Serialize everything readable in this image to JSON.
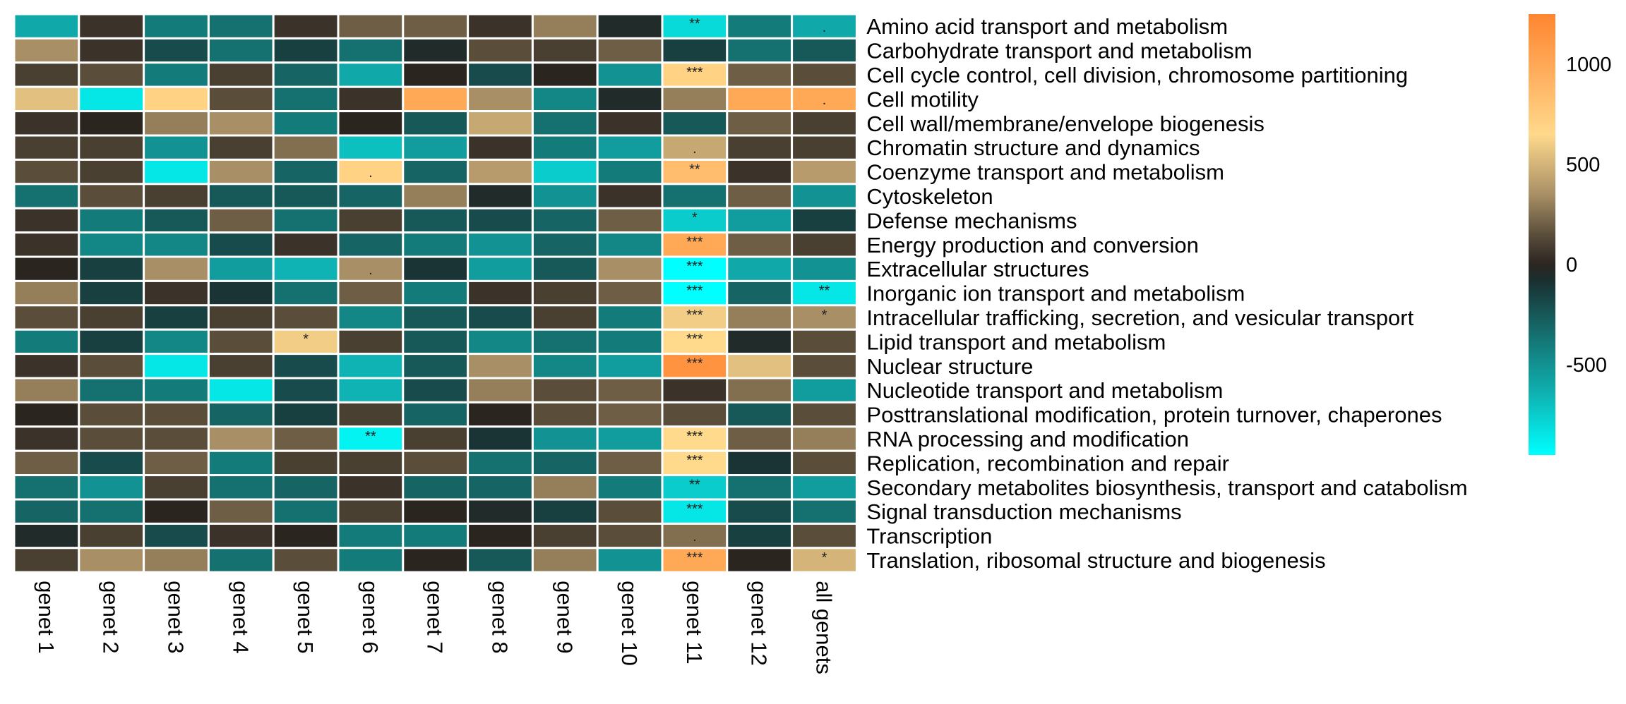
{
  "chart_data": {
    "type": "heatmap",
    "columns": [
      "genet 1",
      "genet 2",
      "genet 3",
      "genet 4",
      "genet 5",
      "genet 6",
      "genet 7",
      "genet 8",
      "genet 9",
      "genet 10",
      "genet 11",
      "genet 12",
      "all genets"
    ],
    "rows": [
      "Amino acid transport and metabolism",
      "Carbohydrate transport and metabolism",
      "Cell cycle control, cell division, chromosome partitioning",
      "Cell motility",
      "Cell wall/membrane/envelope biogenesis",
      "Chromatin structure and dynamics",
      "Coenzyme transport and metabolism",
      "Cytoskeleton",
      "Defense mechanisms",
      "Energy production and conversion",
      "Extracellular structures",
      "Inorganic ion transport and metabolism",
      "Intracellular trafficking, secretion, and vesicular transport",
      "Lipid transport and metabolism",
      "Nuclear structure",
      "Nucleotide transport and metabolism",
      "Posttranslational modification, protein turnover, chaperones",
      "RNA processing and modification",
      "Replication, recombination and repair",
      "Secondary metabolites biosynthesis, transport and catabolism",
      "Signal transduction mechanisms",
      "Transcription",
      "Translation, ribosomal structure and biogenesis"
    ],
    "values": [
      [
        -600,
        50,
        -400,
        -350,
        50,
        200,
        200,
        50,
        300,
        -50,
        -800,
        -400,
        -600
      ],
      [
        350,
        50,
        -200,
        -350,
        -150,
        -350,
        -50,
        150,
        100,
        200,
        -150,
        -350,
        -250
      ],
      [
        100,
        150,
        -400,
        100,
        -300,
        -600,
        0,
        -200,
        0,
        -500,
        700,
        200,
        150
      ],
      [
        550,
        -850,
        700,
        150,
        -350,
        50,
        1000,
        350,
        -450,
        -50,
        300,
        1000,
        1000
      ],
      [
        50,
        0,
        300,
        350,
        -400,
        0,
        -250,
        450,
        -350,
        50,
        -250,
        200,
        100
      ],
      [
        100,
        100,
        -500,
        100,
        250,
        -700,
        -550,
        50,
        -400,
        -550,
        450,
        100,
        100
      ],
      [
        150,
        100,
        -850,
        350,
        -300,
        700,
        -300,
        400,
        -750,
        -400,
        850,
        50,
        400
      ],
      [
        -350,
        150,
        100,
        -250,
        -250,
        -300,
        300,
        -50,
        -500,
        50,
        -350,
        200,
        -500
      ],
      [
        50,
        -400,
        -250,
        200,
        -350,
        100,
        -250,
        -200,
        -300,
        200,
        -750,
        -550,
        -150
      ],
      [
        50,
        -450,
        -450,
        -200,
        50,
        -300,
        -400,
        -500,
        -300,
        -450,
        1000,
        200,
        100
      ],
      [
        0,
        -150,
        350,
        -550,
        -650,
        350,
        -100,
        -550,
        -250,
        350,
        -950,
        -600,
        -500
      ],
      [
        300,
        -150,
        50,
        -100,
        -350,
        200,
        -400,
        50,
        100,
        200,
        -950,
        -300,
        -850
      ],
      [
        150,
        100,
        -150,
        100,
        150,
        -450,
        -250,
        -200,
        100,
        -400,
        600,
        300,
        350
      ],
      [
        -400,
        -150,
        -450,
        150,
        600,
        100,
        -250,
        -450,
        -350,
        -400,
        650,
        -50,
        150
      ],
      [
        50,
        150,
        -850,
        100,
        -200,
        -650,
        -250,
        350,
        -450,
        -550,
        1150,
        550,
        150
      ],
      [
        300,
        -350,
        -400,
        -850,
        -200,
        -650,
        -200,
        300,
        150,
        200,
        50,
        250,
        -550
      ],
      [
        0,
        150,
        150,
        -300,
        -150,
        100,
        -300,
        0,
        150,
        200,
        150,
        -250,
        150
      ],
      [
        50,
        150,
        150,
        350,
        200,
        -900,
        100,
        -100,
        -500,
        -550,
        650,
        200,
        300
      ],
      [
        200,
        -200,
        200,
        -400,
        100,
        100,
        150,
        -350,
        -300,
        200,
        650,
        -100,
        150
      ],
      [
        -350,
        -500,
        100,
        -350,
        -300,
        50,
        -300,
        -300,
        300,
        -400,
        -750,
        -350,
        -550
      ],
      [
        -300,
        -350,
        0,
        200,
        -350,
        100,
        0,
        -50,
        -150,
        150,
        -850,
        -200,
        -350
      ],
      [
        -50,
        100,
        -200,
        50,
        0,
        -400,
        -400,
        0,
        100,
        150,
        250,
        -150,
        150
      ],
      [
        100,
        350,
        300,
        -350,
        150,
        -400,
        0,
        -250,
        300,
        -500,
        1000,
        0,
        500
      ]
    ],
    "significance": [
      [
        "",
        "",
        "",
        "",
        "",
        "",
        "",
        "",
        "",
        "",
        "**",
        "",
        "."
      ],
      [
        "",
        "",
        "",
        "",
        "",
        "",
        "",
        "",
        "",
        "",
        "",
        "",
        ""
      ],
      [
        "",
        "",
        "",
        "",
        "",
        "",
        "",
        "",
        "",
        "",
        "***",
        "",
        ""
      ],
      [
        "",
        "",
        "",
        "",
        "",
        "",
        "",
        "",
        "",
        "",
        "",
        "",
        "."
      ],
      [
        "",
        "",
        "",
        "",
        "",
        "",
        "",
        "",
        "",
        "",
        "",
        "",
        ""
      ],
      [
        "",
        "",
        "",
        "",
        "",
        "",
        "",
        "",
        "",
        "",
        ".",
        "",
        ""
      ],
      [
        "",
        "",
        "",
        "",
        "",
        ".",
        "",
        "",
        "",
        "",
        "**",
        "",
        ""
      ],
      [
        "",
        "",
        "",
        "",
        "",
        "",
        "",
        "",
        "",
        "",
        "",
        "",
        ""
      ],
      [
        "",
        "",
        "",
        "",
        "",
        "",
        "",
        "",
        "",
        "",
        "*",
        "",
        ""
      ],
      [
        "",
        "",
        "",
        "",
        "",
        "",
        "",
        "",
        "",
        "",
        "***",
        "",
        ""
      ],
      [
        "",
        "",
        "",
        "",
        "",
        ".",
        "",
        "",
        "",
        "",
        "***",
        "",
        ""
      ],
      [
        "",
        "",
        "",
        "",
        "",
        "",
        "",
        "",
        "",
        "",
        "***",
        "",
        "**"
      ],
      [
        "",
        "",
        "",
        "",
        "",
        "",
        "",
        "",
        "",
        "",
        "***",
        "",
        "*"
      ],
      [
        "",
        "",
        "",
        "",
        "*",
        "",
        "",
        "",
        "",
        "",
        "***",
        "",
        ""
      ],
      [
        "",
        "",
        "",
        "",
        "",
        "",
        "",
        "",
        "",
        "",
        "***",
        "",
        ""
      ],
      [
        "",
        "",
        "",
        "",
        "",
        "",
        "",
        "",
        "",
        "",
        "",
        "",
        ""
      ],
      [
        "",
        "",
        "",
        "",
        "",
        "",
        "",
        "",
        "",
        "",
        "",
        "",
        ""
      ],
      [
        "",
        "",
        "",
        "",
        "",
        "**",
        "",
        "",
        "",
        "",
        "***",
        "",
        ""
      ],
      [
        "",
        "",
        "",
        "",
        "",
        "",
        "",
        "",
        "",
        "",
        "***",
        "",
        ""
      ],
      [
        "",
        "",
        "",
        "",
        "",
        "",
        "",
        "",
        "",
        "",
        "**",
        "",
        ""
      ],
      [
        "",
        "",
        "",
        "",
        "",
        "",
        "",
        "",
        "",
        "",
        "***",
        "",
        ""
      ],
      [
        "",
        "",
        "",
        "",
        "",
        "",
        "",
        "",
        "",
        "",
        ".",
        "",
        ""
      ],
      [
        "",
        "",
        "",
        "",
        "",
        "",
        "",
        "",
        "",
        "",
        "***",
        "",
        "*"
      ]
    ],
    "colorbar": {
      "min": -950,
      "max": 1250,
      "ticks": [
        1000,
        500,
        0,
        -500
      ],
      "tick_labels": [
        "1000",
        "500",
        "0",
        "-500"
      ],
      "colors": [
        "#00FFFF",
        "#0FB3B3",
        "#157070",
        "#1A2F30",
        "#2B2520",
        "#5A4E3B",
        "#A88F65",
        "#FFD98C",
        "#FF8530"
      ],
      "stops": [
        -950,
        -650,
        -350,
        -80,
        0,
        150,
        350,
        650,
        1250
      ]
    },
    "title": "",
    "xlabel": "",
    "ylabel": ""
  }
}
